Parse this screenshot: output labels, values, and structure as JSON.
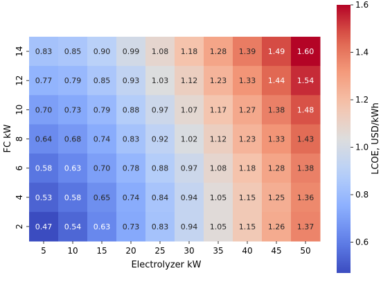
{
  "chart_data": {
    "type": "heatmap",
    "x_categories": [
      "5",
      "10",
      "15",
      "20",
      "25",
      "30",
      "35",
      "40",
      "45",
      "50"
    ],
    "y_categories": [
      "14",
      "12",
      "10",
      "8",
      "6",
      "4",
      "2"
    ],
    "values": [
      [
        0.83,
        0.85,
        0.9,
        0.99,
        1.08,
        1.18,
        1.28,
        1.39,
        1.49,
        1.6
      ],
      [
        0.77,
        0.79,
        0.85,
        0.93,
        1.03,
        1.12,
        1.23,
        1.33,
        1.44,
        1.54
      ],
      [
        0.7,
        0.73,
        0.79,
        0.88,
        0.97,
        1.07,
        1.17,
        1.27,
        1.38,
        1.48
      ],
      [
        0.64,
        0.68,
        0.74,
        0.83,
        0.92,
        1.02,
        1.12,
        1.23,
        1.33,
        1.43
      ],
      [
        0.58,
        0.63,
        0.7,
        0.78,
        0.88,
        0.97,
        1.08,
        1.18,
        1.28,
        1.38
      ],
      [
        0.53,
        0.58,
        0.65,
        0.74,
        0.84,
        0.94,
        1.05,
        1.15,
        1.25,
        1.36
      ],
      [
        0.47,
        0.54,
        0.63,
        0.73,
        0.83,
        0.94,
        1.05,
        1.15,
        1.26,
        1.37
      ]
    ],
    "xlabel": "Electrolyzer kW",
    "ylabel": "FC kW",
    "colorbar_label": "LCOE, USD/kWh",
    "colormap": "coolwarm",
    "vmin": 0.47,
    "vmax": 1.6,
    "colorbar_ticks": [
      "0.6",
      "0.8",
      "1.0",
      "1.2",
      "1.4",
      "1.6"
    ],
    "annotations": true,
    "title": ""
  }
}
